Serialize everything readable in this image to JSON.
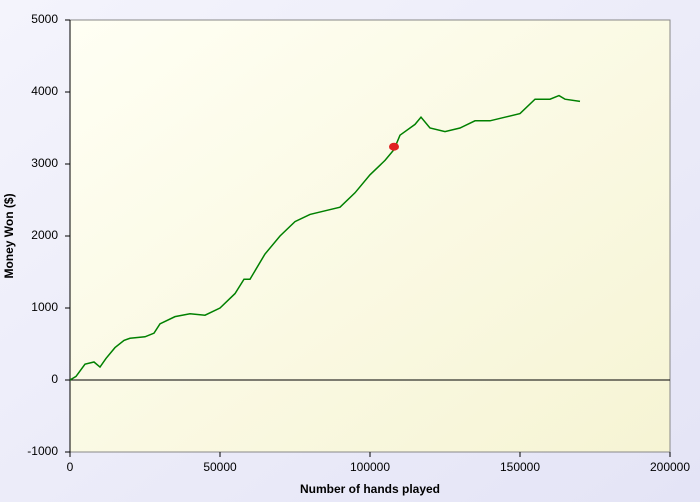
{
  "chart_data": {
    "type": "line",
    "xlabel": "Number of hands played",
    "ylabel": "Money Won ($)",
    "x": [
      0,
      2000,
      5000,
      8000,
      10000,
      12000,
      15000,
      18000,
      20000,
      25000,
      28000,
      30000,
      35000,
      40000,
      45000,
      50000,
      55000,
      58000,
      60000,
      65000,
      70000,
      75000,
      80000,
      85000,
      90000,
      95000,
      100000,
      105000,
      108000,
      110000,
      115000,
      117000,
      120000,
      125000,
      130000,
      135000,
      140000,
      145000,
      150000,
      155000,
      160000,
      163000,
      165000,
      170000
    ],
    "series": [
      {
        "color": "#008000",
        "values": [
          0,
          50,
          220,
          250,
          180,
          300,
          450,
          550,
          580,
          600,
          650,
          780,
          880,
          920,
          900,
          1000,
          1200,
          1400,
          1400,
          1750,
          2000,
          2200,
          2300,
          2350,
          2400,
          2600,
          2850,
          3050,
          3200,
          3400,
          3550,
          3650,
          3500,
          3450,
          3500,
          3600,
          3600,
          3650,
          3700,
          3900,
          3900,
          3950,
          3900,
          3870
        ]
      }
    ],
    "marker": {
      "x": 108000,
      "y": 3240,
      "color": "#e02020"
    },
    "xlim": [
      0,
      200000
    ],
    "xticks": [
      0,
      50000,
      100000,
      150000,
      200000
    ],
    "ylim": [
      -1000,
      5000
    ],
    "yticks": [
      -1000,
      0,
      1000,
      2000,
      3000,
      4000,
      5000
    ],
    "zero_line": true
  }
}
